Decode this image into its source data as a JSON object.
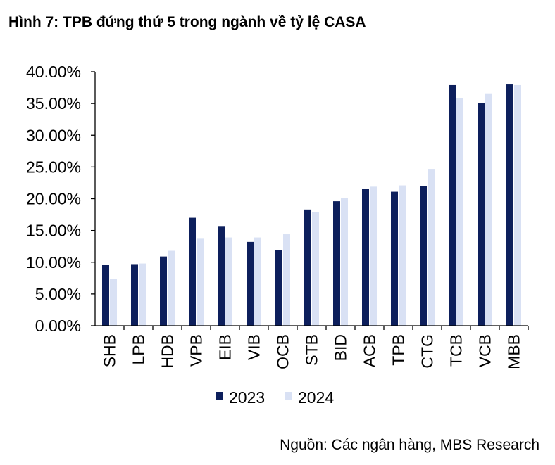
{
  "figure_title": "Hình 7: TPB đứng thứ 5 trong ngành về tỷ lệ CASA",
  "source": "Nguồn: Các ngân hàng, MBS Research",
  "colors": {
    "series_2023": "#0d1f5c",
    "series_2024": "#d9e1f4",
    "axis": "#000000"
  },
  "chart_data": {
    "type": "bar",
    "title": "Hình 7: TPB đứng thứ 5 trong ngành về tỷ lệ CASA",
    "xlabel": "",
    "ylabel": "",
    "ylim": [
      0,
      40
    ],
    "y_ticks": [
      0,
      5,
      10,
      15,
      20,
      25,
      30,
      35,
      40
    ],
    "y_tick_labels": [
      "0.00%",
      "5.00%",
      "10.00%",
      "15.00%",
      "20.00%",
      "25.00%",
      "30.00%",
      "35.00%",
      "40.00%"
    ],
    "grid": false,
    "legend_position": "bottom",
    "categories": [
      "SHB",
      "LPB",
      "HDB",
      "VPB",
      "EIB",
      "VIB",
      "OCB",
      "STB",
      "BID",
      "ACB",
      "TPB",
      "CTG",
      "TCB",
      "VCB",
      "MBB"
    ],
    "series": [
      {
        "name": "2023",
        "values": [
          9.6,
          9.7,
          10.9,
          17.0,
          15.7,
          13.2,
          11.9,
          18.3,
          19.6,
          21.5,
          21.1,
          22.0,
          37.9,
          35.1,
          38.0
        ]
      },
      {
        "name": "2024",
        "values": [
          7.4,
          9.8,
          11.8,
          13.7,
          13.9,
          13.9,
          14.4,
          17.9,
          20.1,
          21.9,
          22.1,
          24.7,
          35.8,
          36.6,
          37.9
        ]
      }
    ]
  }
}
